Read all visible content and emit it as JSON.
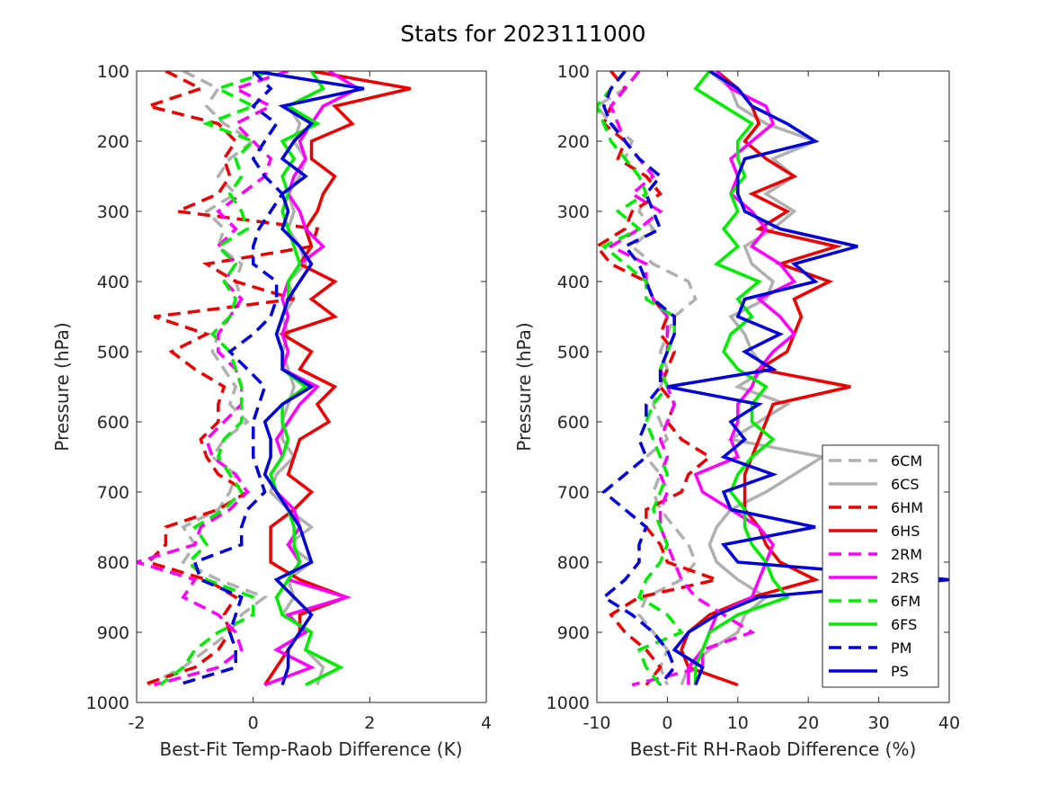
{
  "figure_title": "Stats for 2023111000",
  "colors": {
    "6C": "#b0b0b0",
    "6H": "#ee0000",
    "2R": "#ff00ff",
    "6F": "#00ee00",
    "P": "#0000dd"
  },
  "chart_data": [
    {
      "type": "line",
      "panel": "left",
      "xlabel": "Best-Fit Temp-Raob Difference (K)",
      "ylabel": "Pressure (hPa)",
      "xlim": [
        -2,
        4
      ],
      "ylim": [
        100,
        1000
      ],
      "y_reversed": true,
      "xticks": [
        -2,
        0,
        2,
        4
      ],
      "yticks": [
        100,
        200,
        300,
        400,
        500,
        600,
        700,
        800,
        900,
        1000
      ],
      "pressure": [
        100,
        125,
        150,
        175,
        200,
        225,
        250,
        275,
        300,
        325,
        350,
        375,
        400,
        425,
        450,
        475,
        500,
        525,
        550,
        575,
        600,
        625,
        650,
        675,
        700,
        725,
        750,
        775,
        800,
        825,
        850,
        875,
        900,
        925,
        950,
        975
      ],
      "series": [
        {
          "name": "6CM",
          "color_key": "6C",
          "dashed": true,
          "values": [
            -1.2,
            -0.6,
            -0.8,
            -0.5,
            0.0,
            -0.4,
            -0.6,
            -0.3,
            -0.8,
            -0.5,
            -0.6,
            -0.2,
            -0.3,
            -0.2,
            -0.4,
            -0.6,
            -0.7,
            -0.5,
            -0.3,
            -0.4,
            -0.1,
            -0.5,
            -0.7,
            -0.3,
            -0.4,
            -0.6,
            -1.2,
            -1.0,
            -1.2,
            -0.6,
            0.2,
            -0.2,
            -0.4,
            -0.8,
            -1.2,
            -1.8
          ]
        },
        {
          "name": "6CS",
          "color_key": "6C",
          "dashed": false,
          "values": [
            1.0,
            1.2,
            0.6,
            0.8,
            0.7,
            0.9,
            0.8,
            0.6,
            0.7,
            0.6,
            0.8,
            0.9,
            0.6,
            0.7,
            0.5,
            0.6,
            0.5,
            0.6,
            0.7,
            0.6,
            0.5,
            0.5,
            0.7,
            0.4,
            0.3,
            0.6,
            1.0,
            0.6,
            1.0,
            0.6,
            0.7,
            0.5,
            1.0,
            0.9,
            1.2,
            1.1
          ]
        },
        {
          "name": "6HM",
          "color_key": "6H",
          "dashed": true,
          "values": [
            -1.5,
            -0.9,
            -1.8,
            -0.6,
            -0.3,
            -0.5,
            -0.4,
            -0.6,
            -1.3,
            1.1,
            1.0,
            -0.8,
            -0.3,
            0.7,
            -1.7,
            -0.8,
            -1.4,
            -1.0,
            -0.5,
            -0.6,
            -0.6,
            -0.9,
            -0.8,
            -0.6,
            -0.1,
            -0.6,
            -1.5,
            -1.5,
            -1.8,
            -0.8,
            -0.3,
            -0.5,
            -0.4,
            -0.6,
            -1.0,
            -1.9
          ]
        },
        {
          "name": "6HS",
          "color_key": "6H",
          "dashed": false,
          "values": [
            1.0,
            2.7,
            1.4,
            1.7,
            1.0,
            1.0,
            1.4,
            1.2,
            1.1,
            0.9,
            1.0,
            0.8,
            1.4,
            1.0,
            1.4,
            0.5,
            1.0,
            0.8,
            1.4,
            1.1,
            1.3,
            0.8,
            0.7,
            0.6,
            1.0,
            0.7,
            0.3,
            0.3,
            0.3,
            0.8,
            1.6,
            0.8,
            0.8,
            0.6,
            0.4,
            0.2
          ]
        },
        {
          "name": "2RM",
          "color_key": "2R",
          "dashed": true,
          "values": [
            0.6,
            -0.3,
            0.3,
            -0.3,
            0.0,
            0.3,
            0.2,
            -0.2,
            -0.6,
            -0.3,
            -0.6,
            -0.3,
            -0.5,
            -0.2,
            -0.4,
            -0.6,
            -0.6,
            -0.3,
            -0.2,
            -0.2,
            -0.5,
            -0.8,
            -0.7,
            -0.3,
            -0.1,
            -0.4,
            -0.9,
            -1.0,
            -2.0,
            -1.0,
            -1.2,
            -0.6,
            -0.3,
            -0.2,
            -0.6,
            -1.7
          ]
        },
        {
          "name": "2RS",
          "color_key": "2R",
          "dashed": false,
          "values": [
            1.3,
            1.8,
            1.2,
            1.0,
            0.8,
            0.9,
            0.7,
            0.6,
            0.8,
            0.9,
            1.2,
            0.8,
            0.6,
            0.5,
            0.6,
            0.5,
            0.6,
            0.5,
            1.1,
            0.8,
            0.6,
            0.4,
            0.5,
            0.3,
            0.4,
            0.7,
            0.8,
            0.6,
            0.8,
            0.6,
            1.6,
            0.6,
            0.9,
            0.4,
            1.0,
            0.2
          ]
        },
        {
          "name": "6FM",
          "color_key": "6F",
          "dashed": true,
          "values": [
            0.3,
            -0.6,
            0.0,
            -0.8,
            0.0,
            -0.3,
            -0.2,
            -0.4,
            -0.2,
            -0.1,
            -0.6,
            -0.3,
            -0.5,
            -0.3,
            -0.4,
            -0.7,
            -0.4,
            -0.3,
            -0.2,
            -0.2,
            -0.2,
            -0.5,
            -0.6,
            -0.4,
            -0.2,
            -0.5,
            -1.0,
            -0.8,
            -1.1,
            -0.8,
            0.0,
            0.0,
            -0.6,
            -1.0,
            -1.2,
            -1.6
          ]
        },
        {
          "name": "6FS",
          "color_key": "6F",
          "dashed": false,
          "values": [
            1.0,
            1.2,
            0.6,
            1.1,
            0.5,
            0.7,
            0.5,
            0.6,
            0.5,
            0.6,
            0.7,
            0.8,
            0.6,
            0.6,
            0.5,
            0.4,
            0.5,
            0.5,
            0.9,
            0.5,
            0.5,
            0.6,
            0.5,
            0.3,
            0.4,
            0.6,
            0.7,
            0.7,
            0.8,
            0.6,
            0.4,
            0.5,
            1.0,
            0.9,
            1.5,
            0.9
          ]
        },
        {
          "name": "PM",
          "color_key": "P",
          "dashed": true,
          "values": [
            0.0,
            0.3,
            0.0,
            0.4,
            0.2,
            0.0,
            0.2,
            0.5,
            0.3,
            0.1,
            0.0,
            0.0,
            0.4,
            0.4,
            0.3,
            0.0,
            -0.4,
            -0.1,
            0.2,
            0.1,
            0.0,
            0.0,
            0.0,
            0.1,
            0.2,
            -0.1,
            -0.2,
            -0.2,
            -1.0,
            -0.9,
            -0.2,
            -0.3,
            -0.4,
            -0.3,
            -0.3,
            -1.3
          ]
        },
        {
          "name": "PS",
          "color_key": "P",
          "dashed": false,
          "values": [
            0.0,
            1.9,
            0.5,
            1.0,
            0.7,
            0.5,
            0.9,
            0.5,
            0.6,
            0.5,
            0.8,
            1.0,
            0.8,
            0.6,
            0.5,
            0.4,
            0.5,
            0.5,
            1.0,
            0.5,
            0.2,
            0.3,
            0.3,
            0.2,
            0.4,
            0.6,
            0.8,
            0.9,
            1.0,
            0.4,
            0.7,
            1.0,
            0.8,
            0.6,
            0.6,
            0.5
          ]
        }
      ]
    },
    {
      "type": "line",
      "panel": "right",
      "xlabel": "Best-Fit RH-Raob Difference (%)",
      "ylabel": "Pressure (hPa)",
      "xlim": [
        -10,
        40
      ],
      "ylim": [
        100,
        1000
      ],
      "y_reversed": true,
      "xticks": [
        -10,
        0,
        10,
        20,
        30,
        40
      ],
      "yticks": [
        100,
        200,
        300,
        400,
        500,
        600,
        700,
        800,
        900,
        1000
      ],
      "legend_position": "lower-right",
      "pressure": [
        100,
        125,
        150,
        175,
        200,
        225,
        250,
        275,
        300,
        325,
        350,
        375,
        400,
        425,
        450,
        475,
        500,
        525,
        550,
        575,
        600,
        625,
        650,
        675,
        700,
        725,
        750,
        775,
        800,
        825,
        850,
        875,
        900,
        925,
        950,
        975
      ],
      "series": [
        {
          "name": "6CM",
          "color_key": "6C",
          "dashed": true,
          "values": [
            -4,
            -6,
            -10,
            -8,
            -5,
            -6,
            -4,
            -3,
            -4,
            -2,
            -5,
            -2,
            3,
            4,
            1,
            0,
            -1,
            0,
            -1,
            -2,
            -1,
            0,
            -3,
            -1,
            -2,
            -1,
            1,
            3,
            4,
            2,
            -3,
            -4,
            -2,
            0,
            -1,
            0
          ]
        },
        {
          "name": "6CS",
          "color_key": "6C",
          "dashed": false,
          "values": [
            6,
            9,
            10,
            14,
            21,
            15,
            18,
            14,
            18,
            15,
            11,
            12,
            15,
            14,
            9,
            11,
            12,
            14,
            10,
            17,
            13,
            9,
            22,
            18,
            14,
            9,
            7,
            6,
            7,
            10,
            14,
            11,
            10,
            6,
            3,
            2
          ]
        },
        {
          "name": "6HM",
          "color_key": "6H",
          "dashed": true,
          "values": [
            -8,
            -6,
            -8,
            -9,
            -6,
            -7,
            -3,
            -1,
            -5,
            -6,
            -10,
            -8,
            -3,
            -2,
            0,
            -1,
            1,
            0,
            -1,
            1,
            0,
            2,
            6,
            3,
            2,
            -3,
            -3,
            -1,
            0,
            7,
            -4,
            -8,
            -6,
            -3,
            -1,
            -3
          ]
        },
        {
          "name": "6HS",
          "color_key": "6H",
          "dashed": false,
          "values": [
            7,
            10,
            12,
            13,
            11,
            14,
            18,
            12,
            17,
            13,
            24,
            16,
            23,
            18,
            19,
            18,
            17,
            13,
            26,
            15,
            14,
            13,
            12,
            11,
            11,
            11,
            13,
            14,
            16,
            21,
            12,
            6,
            3,
            2,
            3,
            10
          ]
        },
        {
          "name": "2RM",
          "color_key": "2R",
          "dashed": true,
          "values": [
            -4,
            -6,
            -8,
            -7,
            -6,
            -4,
            -2,
            -5,
            -1,
            -4,
            -8,
            -3,
            -3,
            -2,
            0,
            0,
            0,
            -1,
            0,
            1,
            0,
            -1,
            0,
            -1,
            0,
            -1,
            -1,
            0,
            1,
            2,
            4,
            8,
            12,
            5,
            5,
            -5
          ]
        },
        {
          "name": "2RS",
          "color_key": "2R",
          "dashed": false,
          "values": [
            7,
            9,
            14,
            15,
            12,
            9,
            10,
            9,
            12,
            14,
            12,
            16,
            18,
            13,
            16,
            18,
            15,
            13,
            12,
            10,
            10,
            9,
            10,
            4,
            5,
            9,
            13,
            15,
            14,
            13,
            12,
            7,
            6,
            5,
            3,
            3
          ]
        },
        {
          "name": "6FM",
          "color_key": "6F",
          "dashed": true,
          "values": [
            -6,
            -8,
            -10,
            -9,
            -8,
            -6,
            -4,
            -3,
            -7,
            -4,
            -9,
            -6,
            -3,
            -3,
            1,
            1,
            0,
            -1,
            0,
            -2,
            -3,
            -2,
            -1,
            0,
            -1,
            -2,
            -1,
            0,
            -1,
            -3,
            -4,
            0,
            2,
            -4,
            -3,
            -1
          ]
        },
        {
          "name": "6FS",
          "color_key": "6F",
          "dashed": false,
          "values": [
            6,
            4,
            8,
            12,
            10,
            10,
            11,
            9,
            10,
            8,
            10,
            7,
            13,
            10,
            12,
            9,
            8,
            10,
            14,
            12,
            12,
            15,
            12,
            10,
            9,
            11,
            11,
            12,
            14,
            15,
            17,
            10,
            6,
            5,
            4,
            4
          ]
        },
        {
          "name": "PM",
          "color_key": "P",
          "dashed": true,
          "values": [
            -6,
            -8,
            -9,
            -8,
            -6,
            -4,
            -1,
            -3,
            -2,
            -1,
            -6,
            -4,
            -3,
            -2,
            1,
            1,
            0,
            -1,
            -1,
            -3,
            -3,
            -4,
            -3,
            -6,
            -9,
            -6,
            -3,
            -4,
            -4,
            -6,
            -9,
            -5,
            -2,
            0,
            1,
            -1
          ]
        },
        {
          "name": "PS",
          "color_key": "P",
          "dashed": false,
          "values": [
            6,
            10,
            12,
            17,
            21,
            11,
            10,
            10,
            11,
            16,
            27,
            18,
            21,
            11,
            10,
            16,
            11,
            15,
            0,
            13,
            9,
            11,
            8,
            15,
            8,
            9,
            21,
            8,
            10,
            40,
            13,
            7,
            3,
            1,
            5,
            4
          ]
        }
      ]
    }
  ]
}
